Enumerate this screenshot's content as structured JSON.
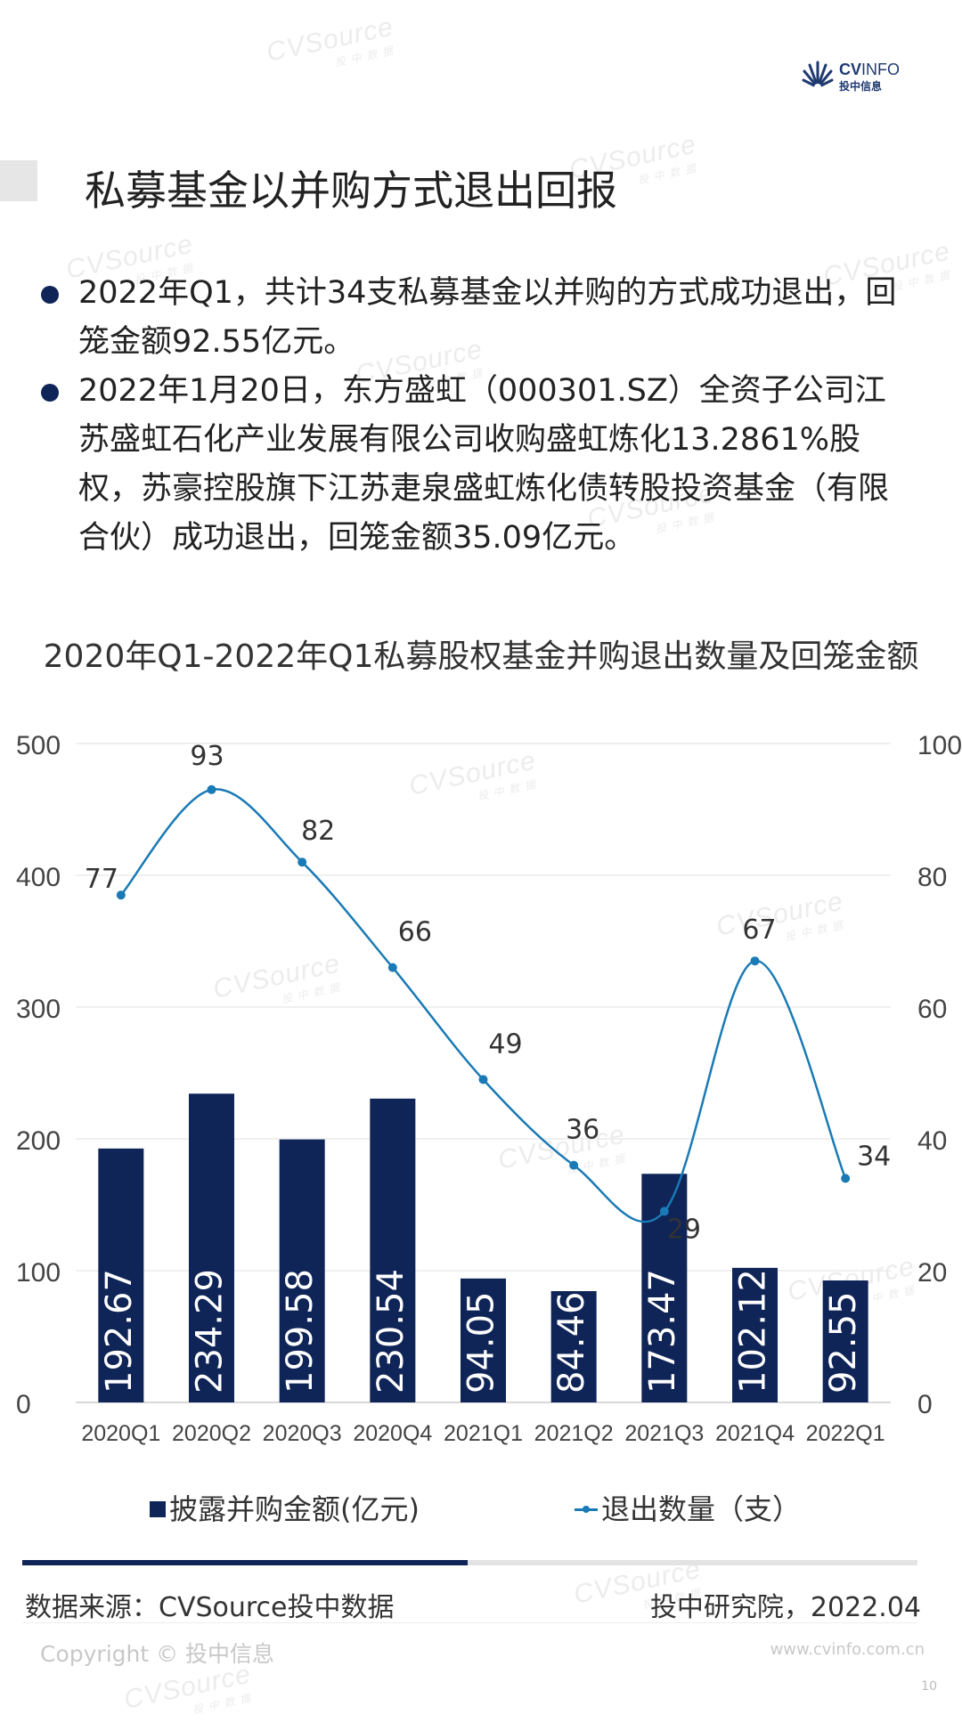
{
  "header": {
    "logo_name_bold": "CV",
    "logo_name_thin": "INFO",
    "logo_sub": "投中信息",
    "watermark": "CVSource",
    "watermark_sub": "投中数据"
  },
  "page_title": "私募基金以并购方式退出回报",
  "bullets": [
    "2022年Q1，共计34支私募基金以并购的方式成功退出，回笼金额92.55亿元。",
    "2022年1月20日，东方盛虹（000301.SZ）全资子公司江苏盛虹石化产业发展有限公司收购盛虹炼化13.2861%股权，苏豪控股旗下江苏疌泉盛虹炼化债转股投资基金（有限合伙）成功退出，回笼金额35.09亿元。"
  ],
  "chart_data": {
    "type": "bar",
    "title": "2020年Q1-2022年Q1私募股权基金并购退出数量及回笼金额",
    "categories": [
      "2020Q1",
      "2020Q2",
      "2020Q3",
      "2020Q4",
      "2021Q1",
      "2021Q2",
      "2021Q3",
      "2021Q4",
      "2022Q1"
    ],
    "series": [
      {
        "name": "披露并购金额(亿元)",
        "type": "bar",
        "axis": "left",
        "values": [
          192.67,
          234.29,
          199.58,
          230.54,
          94.05,
          84.46,
          173.47,
          102.12,
          92.55
        ],
        "color": "#0f2457"
      },
      {
        "name": "退出数量（支）",
        "type": "line",
        "axis": "right",
        "values": [
          77,
          93,
          82,
          66,
          49,
          36,
          29,
          67,
          34
        ],
        "color": "#1a7ab5"
      }
    ],
    "y_left": {
      "min": 0,
      "max": 500,
      "ticks": [
        0,
        100,
        200,
        300,
        400,
        500
      ]
    },
    "y_right": {
      "min": 0,
      "max": 100,
      "ticks": [
        0,
        20,
        40,
        60,
        80,
        100
      ]
    },
    "grid": true,
    "legend": "bottom"
  },
  "footer": {
    "source": "数据来源：CVSource投中数据",
    "org_date": "投中研究院，2022.04",
    "copyright": "Copyright © 投中信息",
    "website": "www.cvinfo.com.cn",
    "page_number": "10"
  }
}
